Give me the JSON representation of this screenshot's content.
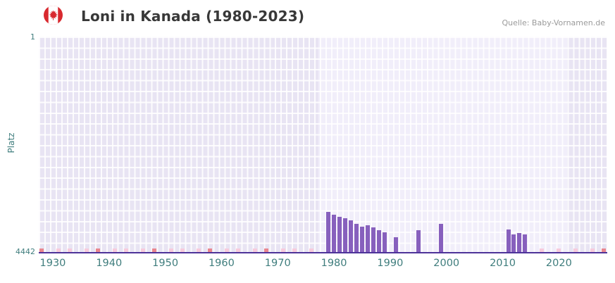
{
  "header": {
    "title": "Loni in Kanada (1980-2023)",
    "source": "Quelle: Baby-Vornamen.de",
    "flag_icon": "canada-flag-roundel"
  },
  "y_axis": {
    "label": "Platz",
    "top_tick": "1",
    "bottom_tick": "4442"
  },
  "chart_data": {
    "type": "bar",
    "title": "Loni in Kanada (1980-2023)",
    "xlabel": "",
    "ylabel": "Platz",
    "y_axis_inverted": true,
    "ylim": [
      1,
      4442
    ],
    "x_range": [
      1927.5,
      2028.6
    ],
    "x_ticks": [
      1930,
      1940,
      1950,
      1960,
      1970,
      1980,
      1990,
      2000,
      2010,
      2020
    ],
    "grid": true,
    "legend": false,
    "highlight_band": {
      "from": 1977.2,
      "to": 2021.4
    },
    "points": [
      {
        "year": 1979,
        "rank": 3590
      },
      {
        "year": 1980,
        "rank": 3650
      },
      {
        "year": 1981,
        "rank": 3690
      },
      {
        "year": 1982,
        "rank": 3720
      },
      {
        "year": 1983,
        "rank": 3760
      },
      {
        "year": 1984,
        "rank": 3840
      },
      {
        "year": 1985,
        "rank": 3890
      },
      {
        "year": 1986,
        "rank": 3860
      },
      {
        "year": 1987,
        "rank": 3910
      },
      {
        "year": 1988,
        "rank": 3970
      },
      {
        "year": 1989,
        "rank": 4010
      },
      {
        "year": 1991,
        "rank": 4110
      },
      {
        "year": 1995,
        "rank": 3970
      },
      {
        "year": 1999,
        "rank": 3840
      },
      {
        "year": 2011,
        "rank": 3950
      },
      {
        "year": 2012,
        "rank": 4050
      },
      {
        "year": 2013,
        "rank": 4020
      },
      {
        "year": 2014,
        "rank": 4050
      }
    ],
    "no_data_markers": {
      "dark_years": [
        1928,
        1938,
        1948,
        1958,
        1968,
        2028
      ],
      "light_years": [
        1931,
        1933,
        1936,
        1941,
        1943,
        1946,
        1951,
        1953,
        1956,
        1961,
        1963,
        1966,
        1971,
        1973,
        1976,
        2017,
        2020,
        2023,
        2026
      ]
    },
    "colors": {
      "bar": "#8760bd",
      "marker_dark": "#e9868f",
      "marker_light": "#f7cbdd",
      "axis_line": "#4d3399",
      "plot_background": "#e8e4f3",
      "highlight_background": "#f1eefa",
      "tick_label": "#3f7d7d",
      "title": "#383838",
      "flag_red": "#d8292f"
    }
  }
}
